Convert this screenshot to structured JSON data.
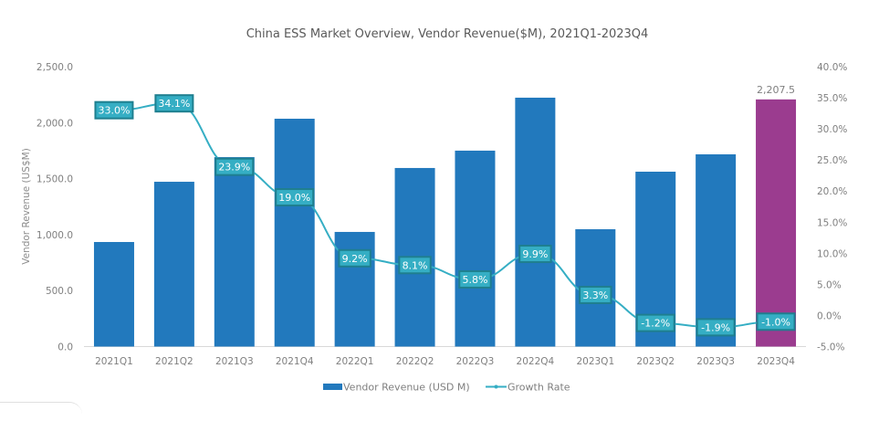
{
  "chart_data": {
    "type": "bar",
    "title": "China ESS Market Overview, Vendor Revenue($M), 2021Q1-2023Q4",
    "xlabel": "",
    "ylabel": "Vendor Revenue (US$M)",
    "y2label": "",
    "categories": [
      "2021Q1",
      "2021Q2",
      "2021Q3",
      "2021Q4",
      "2022Q1",
      "2022Q2",
      "2022Q3",
      "2022Q4",
      "2023Q1",
      "2023Q2",
      "2023Q3",
      "2023Q4"
    ],
    "ylim": [
      0,
      2500
    ],
    "y_ticks": [
      "0.0",
      "500.0",
      "1,000.0",
      "1,500.0",
      "2,000.0",
      "2,500.0"
    ],
    "y_tick_values": [
      0,
      500,
      1000,
      1500,
      2000,
      2500
    ],
    "y2lim": [
      -5,
      40
    ],
    "y2_ticks": [
      "-5.0%",
      "0.0%",
      "5.0%",
      "10.0%",
      "15.0%",
      "20.0%",
      "25.0%",
      "30.0%",
      "35.0%",
      "40.0%"
    ],
    "y2_tick_values": [
      -5,
      0,
      5,
      10,
      15,
      20,
      25,
      30,
      35,
      40
    ],
    "grid": false,
    "legend_position": "bottom",
    "series": [
      {
        "name": "Vendor Revenue (USD M)",
        "type": "bar",
        "axis": "left",
        "color": "#2279bd",
        "highlight_color": "#9b3c8f",
        "highlight_index": 11,
        "values": [
          934,
          1472,
          1692,
          2035,
          1024,
          1595,
          1750,
          2223,
          1048,
          1562,
          1717,
          2207.5
        ],
        "labels": [
          "",
          "",
          "",
          "",
          "",
          "",
          "",
          "",
          "",
          "",
          "",
          "2,207.5"
        ]
      },
      {
        "name": "Growth Rate",
        "type": "line",
        "axis": "right",
        "color": "#35aec4",
        "label_bg": "#35aec4",
        "label_border": "#1f7f8f",
        "values": [
          33.0,
          34.1,
          23.9,
          19.0,
          9.2,
          8.1,
          5.8,
          9.9,
          3.3,
          -1.2,
          -1.9,
          -1.0
        ],
        "labels": [
          "33.0%",
          "34.1%",
          "23.9%",
          "19.0%",
          "9.2%",
          "8.1%",
          "5.8%",
          "9.9%",
          "3.3%",
          "-1.2%",
          "-1.9%",
          "-1.0%"
        ]
      }
    ]
  }
}
